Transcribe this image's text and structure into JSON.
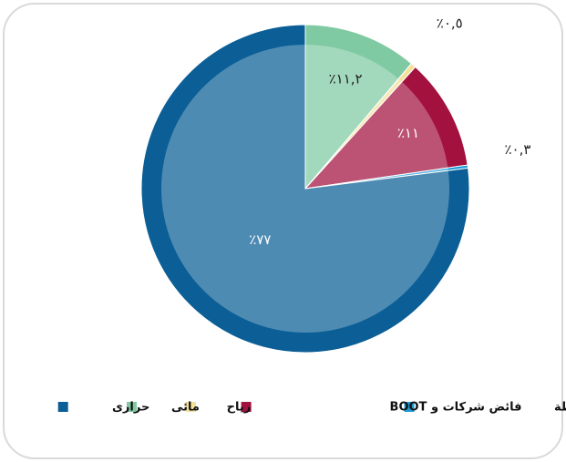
{
  "chart_data": {
    "type": "pie",
    "categories": [
      "مائى",
      "رياح",
      "فائض شركات و BOOT",
      "المحطات الغير مربوطة",
      "حرارى"
    ],
    "values": [
      11.2,
      0.5,
      11,
      0.3,
      77
    ],
    "value_labels": [
      "٪١١,٢",
      "٪٠,٥",
      "٪١١",
      "٪٠,٣",
      "٪٧٧"
    ],
    "colors": [
      "#7fcaa3",
      "#f3e09a",
      "#a3113f",
      "#1a9bd7",
      "#0b5f96"
    ],
    "legend": "bottom"
  }
}
